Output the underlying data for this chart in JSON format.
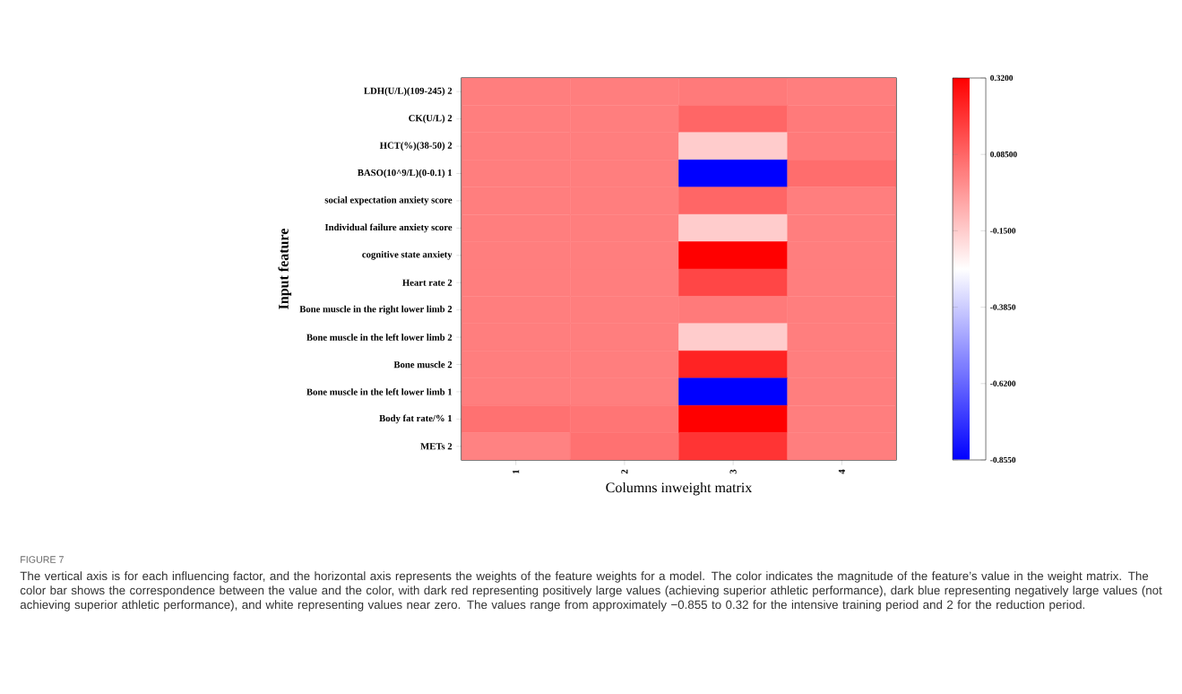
{
  "chart_data": {
    "type": "heatmap",
    "title": "FIGURE 7",
    "xlabel": "Columns  inweight  matrix",
    "ylabel": "Input feature",
    "categories": [
      "1",
      "2",
      "3",
      "4"
    ],
    "y_categories": [
      "LDH(U/L)(109-245) 2",
      "CK(U/L) 2",
      "HCT(%)(38-50) 2",
      "BASO(10^9/L)(0-0.1) 1",
      "social expectation anxiety score",
      "Individual failure anxiety score",
      "cognitive state anxiety",
      "Heart rate 2",
      "Bone muscle in the right lower limb 2",
      "Bone muscle in the left lower limb 2",
      "Bone muscle 2",
      "Bone muscle in the left lower limb 1",
      "Body fat rate/% 1",
      "METs 2"
    ],
    "cells": [
      [
        0.03,
        0.03,
        0.04,
        0.03
      ],
      [
        0.03,
        0.03,
        0.085,
        0.04
      ],
      [
        0.03,
        0.03,
        -0.15,
        0.04
      ],
      [
        0.03,
        0.03,
        -0.855,
        0.07
      ],
      [
        0.03,
        0.03,
        0.085,
        0.03
      ],
      [
        0.03,
        0.03,
        -0.15,
        0.03
      ],
      [
        0.03,
        0.03,
        0.32,
        0.03
      ],
      [
        0.03,
        0.03,
        0.16,
        0.03
      ],
      [
        0.03,
        0.03,
        0.04,
        0.03
      ],
      [
        0.03,
        0.03,
        -0.15,
        0.03
      ],
      [
        0.03,
        0.03,
        0.24,
        0.03
      ],
      [
        0.03,
        0.03,
        -0.855,
        0.03
      ],
      [
        0.06,
        0.05,
        0.32,
        0.03
      ],
      [
        0.02,
        0.06,
        0.2,
        0.03
      ]
    ],
    "clim": [
      -0.855,
      0.32
    ],
    "cticks": [
      {
        "value": 0.32,
        "label": "0.3200"
      },
      {
        "value": 0.085,
        "label": "0.08500"
      },
      {
        "value": -0.15,
        "label": "-0.1500"
      },
      {
        "value": -0.385,
        "label": "-0.3850"
      },
      {
        "value": -0.62,
        "label": "-0.6200"
      },
      {
        "value": -0.855,
        "label": "-0.8550"
      }
    ],
    "annotations": [
      "The vertical axis is for each influencing factor, and the horizontal axis represents the weights of the feature weights for a model. The color indicates the magnitude of the feature’s value in the weight matrix. The color bar shows the correspondence between the value and the color, with dark red representing positively large values (achieving superior athletic performance), dark blue representing negatively large values (not achieving superior athletic performance), and white representing values near zero. The values range from approximately −0.855 to 0.32 for the intensive training period and 2 for the reduction period."
    ]
  }
}
